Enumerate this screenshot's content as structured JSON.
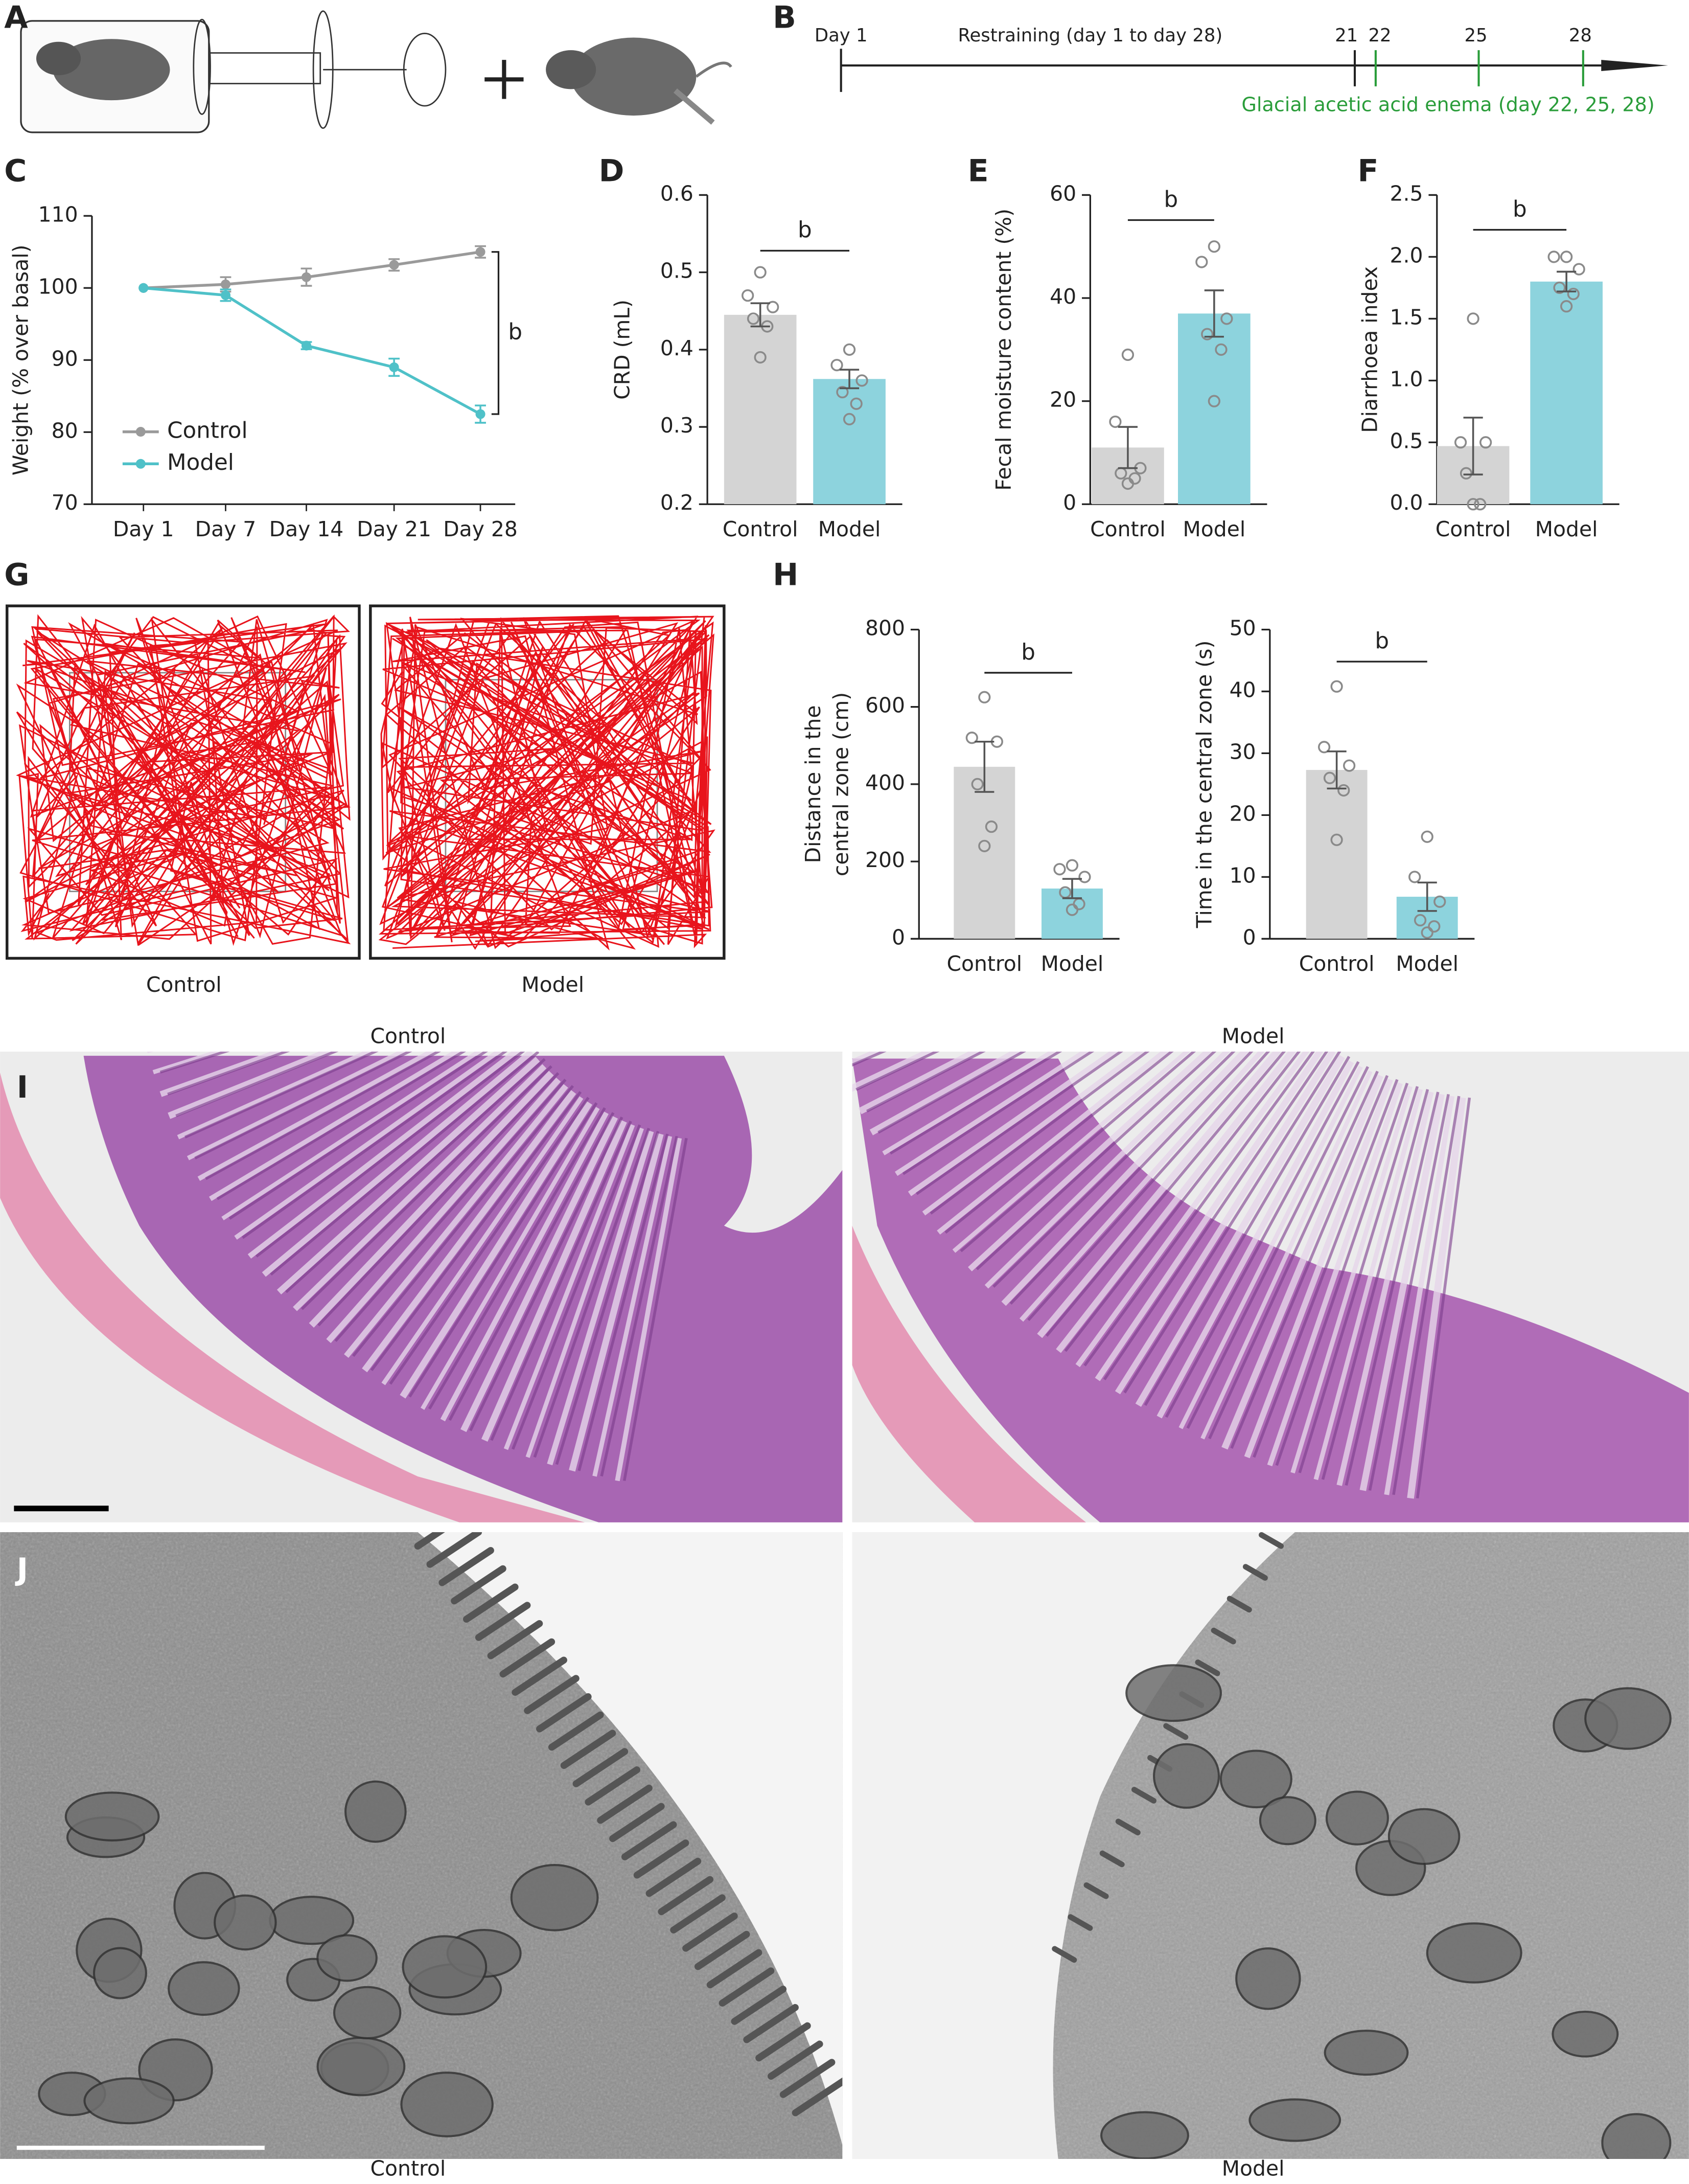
{
  "panel_labels": [
    "A",
    "B",
    "C",
    "D",
    "E",
    "F",
    "G",
    "H",
    "I",
    "J"
  ],
  "timeline": {
    "start": "Day 1",
    "restraint": "Restraining (day 1 to day 28)",
    "days": [
      "21",
      "22",
      "25",
      "28"
    ],
    "enema": "Glacial acetic acid enema (day 22, 25, 28)"
  },
  "open_field": {
    "groups": [
      "Control",
      "Model"
    ]
  },
  "histology": {
    "groups": [
      "Control",
      "Model"
    ]
  },
  "electron_microscopy": {
    "groups": [
      "Control",
      "Model"
    ]
  },
  "chart_data": [
    {
      "type": "line",
      "ylabel": "Weight (% over basal)",
      "categories": [
        "Day 1",
        "Day 7",
        "Day 14",
        "Day 21",
        "Day 28"
      ],
      "series": [
        {
          "name": "Control",
          "color": "#9a9a9a",
          "values": [
            100,
            100.5,
            101.5,
            103.2,
            105
          ],
          "errors": [
            0,
            1,
            1.2,
            0.8,
            0.8
          ]
        },
        {
          "name": "Model",
          "color": "#4fc1c8",
          "values": [
            100,
            99,
            92,
            89,
            82.5
          ],
          "errors": [
            0,
            0.8,
            0.5,
            1.2,
            1.2
          ]
        }
      ],
      "ylim": [
        70,
        110
      ],
      "yticks": [
        70,
        80,
        90,
        100,
        110
      ],
      "legend": "lower left",
      "annotation": "b"
    },
    {
      "type": "bar",
      "ylabel": "CRD (mL)",
      "categories": [
        "Control",
        "Model"
      ],
      "colors": [
        "#d4d4d4",
        "#8dd3dd"
      ],
      "values": [
        0.445,
        0.362
      ],
      "errors": [
        0.015,
        0.012
      ],
      "points": [
        [
          0.5,
          0.47,
          0.455,
          0.44,
          0.43,
          0.39
        ],
        [
          0.4,
          0.38,
          0.36,
          0.345,
          0.33,
          0.31
        ]
      ],
      "ylim": [
        0.2,
        0.6
      ],
      "yticks": [
        0.2,
        0.3,
        0.4,
        0.5,
        0.6
      ],
      "annotation": "b"
    },
    {
      "type": "bar",
      "ylabel": "Fecal moisture content (%)",
      "categories": [
        "Control",
        "Model"
      ],
      "colors": [
        "#d4d4d4",
        "#8dd3dd"
      ],
      "values": [
        11,
        37
      ],
      "errors": [
        4,
        4.5
      ],
      "points": [
        [
          29,
          16,
          7,
          6,
          5,
          4
        ],
        [
          50,
          47,
          36,
          33,
          30,
          20
        ]
      ],
      "ylim": [
        0,
        60
      ],
      "yticks": [
        0,
        20,
        40,
        60
      ],
      "annotation": "b"
    },
    {
      "type": "bar",
      "ylabel": "Diarrhoea index",
      "categories": [
        "Control",
        "Model"
      ],
      "colors": [
        "#d4d4d4",
        "#8dd3dd"
      ],
      "values": [
        0.47,
        1.8
      ],
      "errors": [
        0.23,
        0.08
      ],
      "points": [
        [
          1.5,
          0.5,
          0.5,
          0.25,
          0,
          0
        ],
        [
          2,
          2,
          1.9,
          1.75,
          1.7,
          1.6
        ]
      ],
      "ylim": [
        0,
        2.5
      ],
      "yticks": [
        {
          "value": 0,
          "label": "0.0"
        },
        0.5,
        {
          "value": 1,
          "label": "1.0"
        },
        1.5,
        {
          "value": 2,
          "label": "2.0"
        },
        2.5
      ],
      "annotation": "b"
    },
    {
      "type": "bar",
      "ylabel": [
        "Distance in the",
        "central zone (cm)"
      ],
      "categories": [
        "Control",
        "Model"
      ],
      "colors": [
        "#d4d4d4",
        "#8dd3dd"
      ],
      "values": [
        445,
        130
      ],
      "errors": [
        65,
        25
      ],
      "points": [
        [
          625,
          520,
          510,
          400,
          290,
          240
        ],
        [
          190,
          180,
          160,
          120,
          90,
          75
        ]
      ],
      "ylim": [
        0,
        800
      ],
      "yticks": [
        0,
        200,
        400,
        600,
        800
      ],
      "annotation": "b"
    },
    {
      "type": "bar",
      "ylabel": "Time in the central zone (s)",
      "categories": [
        "Control",
        "Model"
      ],
      "colors": [
        "#d4d4d4",
        "#8dd3dd"
      ],
      "values": [
        27.3,
        6.8
      ],
      "errors": [
        3,
        2.3
      ],
      "points": [
        [
          40.8,
          31,
          28,
          26,
          24,
          16
        ],
        [
          16.5,
          10,
          6,
          3,
          2,
          1
        ]
      ],
      "ylim": [
        0,
        50
      ],
      "yticks": [
        0,
        10,
        20,
        30,
        40,
        50
      ],
      "annotation": "b"
    }
  ]
}
